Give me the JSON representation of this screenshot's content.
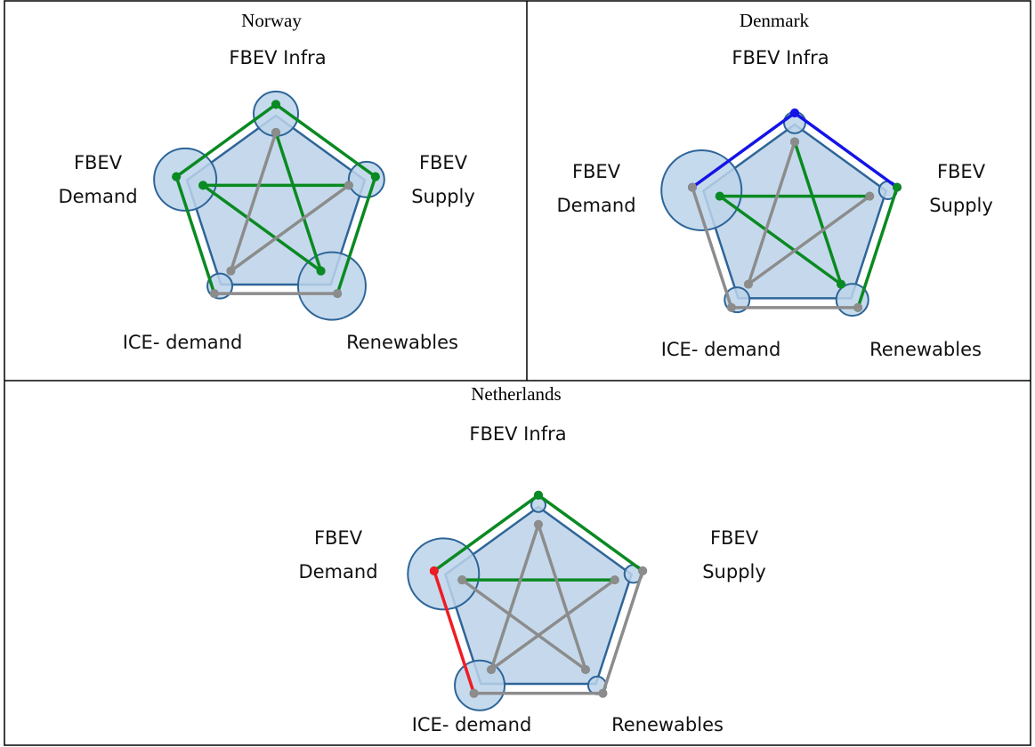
{
  "panels": [
    {
      "title": "Norway",
      "nodes": [
        [
          "FBEV Infra"
        ],
        [
          "FBEV",
          "Supply"
        ],
        [
          "Renewables"
        ],
        [
          "ICE- demand"
        ],
        [
          "FBEV",
          "Demand"
        ]
      ]
    },
    {
      "title": "Denmark",
      "nodes": [
        [
          "FBEV Infra"
        ],
        [
          "FBEV",
          "Supply"
        ],
        [
          "Renewables"
        ],
        [
          "ICE- demand"
        ],
        [
          "FBEV",
          "Demand"
        ]
      ]
    },
    {
      "title": "Netherlands",
      "nodes": [
        [
          "FBEV Infra"
        ],
        [
          "FBEV",
          "Supply"
        ],
        [
          "Renewables"
        ],
        [
          "ICE- demand"
        ],
        [
          "FBEV",
          "Demand"
        ]
      ]
    }
  ]
}
